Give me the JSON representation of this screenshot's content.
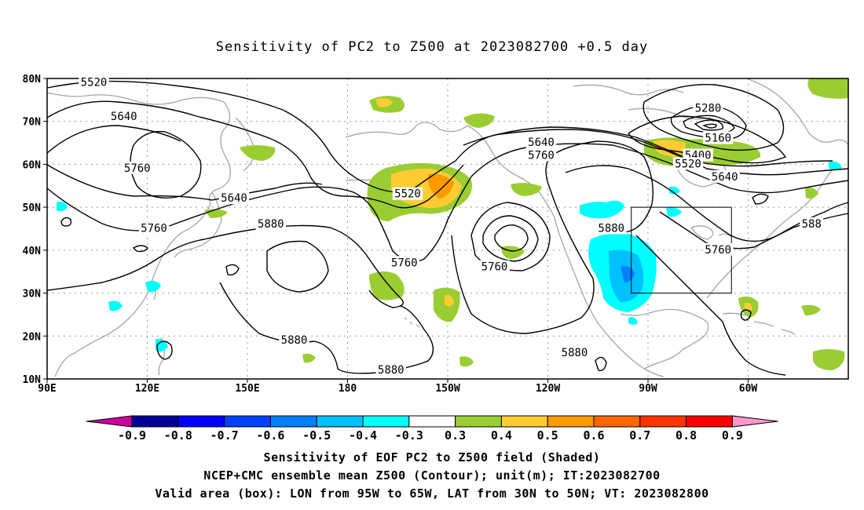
{
  "title": "Sensitivity of PC2 to Z500 at 2023082700 +0.5 day",
  "map": {
    "lon_ticks": [
      {
        "label": "90E",
        "lon": 90
      },
      {
        "label": "120E",
        "lon": 120
      },
      {
        "label": "150E",
        "lon": 150
      },
      {
        "label": "180",
        "lon": 180
      },
      {
        "label": "150W",
        "lon": 210
      },
      {
        "label": "120W",
        "lon": 240
      },
      {
        "label": "90W",
        "lon": 270
      },
      {
        "label": "60W",
        "lon": 300
      }
    ],
    "lat_ticks": [
      {
        "label": "80N",
        "lat": 80
      },
      {
        "label": "70N",
        "lat": 70
      },
      {
        "label": "60N",
        "lat": 60
      },
      {
        "label": "50N",
        "lat": 50
      },
      {
        "label": "40N",
        "lat": 40
      },
      {
        "label": "30N",
        "lat": 30
      },
      {
        "label": "20N",
        "lat": 20
      },
      {
        "label": "10N",
        "lat": 10
      }
    ],
    "valid_box": {
      "lon_min": 265,
      "lon_max": 295,
      "lat_min": 30,
      "lat_max": 50
    },
    "contour_labels": [
      {
        "text": "5520",
        "lon": 104,
        "lat": 79
      },
      {
        "text": "5640",
        "lon": 113,
        "lat": 71
      },
      {
        "text": "5760",
        "lon": 117,
        "lat": 59
      },
      {
        "text": "5640",
        "lon": 146,
        "lat": 52
      },
      {
        "text": "5760",
        "lon": 122,
        "lat": 45
      },
      {
        "text": "5880",
        "lon": 157,
        "lat": 46
      },
      {
        "text": "5520",
        "lon": 198,
        "lat": 53
      },
      {
        "text": "5760",
        "lon": 197,
        "lat": 37
      },
      {
        "text": "5760",
        "lon": 224,
        "lat": 36
      },
      {
        "text": "5640",
        "lon": 238,
        "lat": 65
      },
      {
        "text": "5760",
        "lon": 238,
        "lat": 62
      },
      {
        "text": "5880",
        "lon": 259,
        "lat": 45
      },
      {
        "text": "5880",
        "lon": 164,
        "lat": 19
      },
      {
        "text": "5880",
        "lon": 193,
        "lat": 12
      },
      {
        "text": "5880",
        "lon": 248,
        "lat": 16
      },
      {
        "text": "5280",
        "lon": 288,
        "lat": 73
      },
      {
        "text": "5160",
        "lon": 291,
        "lat": 66
      },
      {
        "text": "5400",
        "lon": 285,
        "lat": 62
      },
      {
        "text": "5520",
        "lon": 282,
        "lat": 60
      },
      {
        "text": "5640",
        "lon": 293,
        "lat": 57
      },
      {
        "text": "5760",
        "lon": 291,
        "lat": 40
      },
      {
        "text": "588",
        "lon": 319,
        "lat": 46
      }
    ]
  },
  "colorbar": {
    "labels": [
      "-0.9",
      "-0.8",
      "-0.7",
      "-0.6",
      "-0.5",
      "-0.4",
      "-0.3",
      "0.3",
      "0.4",
      "0.5",
      "0.6",
      "0.7",
      "0.8",
      "0.9"
    ],
    "colors": [
      "#000099",
      "#0000ff",
      "#0040ff",
      "#0080ff",
      "#00c0ff",
      "#00ffff",
      "#ffffff",
      "#9acd32",
      "#ffcc33",
      "#ff9900",
      "#ff6600",
      "#ff3300",
      "#ff0000"
    ],
    "low_end_color": "#cc0099",
    "high_end_color": "#ff99cc"
  },
  "footer": {
    "line1": "Sensitivity of EOF PC2 to Z500 field (Shaded)",
    "line2": "NCEP+CMC ensemble mean Z500 (Contour); unit(m); IT:2023082700",
    "line3": "Valid area (box): LON from 95W to 65W, LAT from 30N to 50N; VT: 2023082800"
  }
}
